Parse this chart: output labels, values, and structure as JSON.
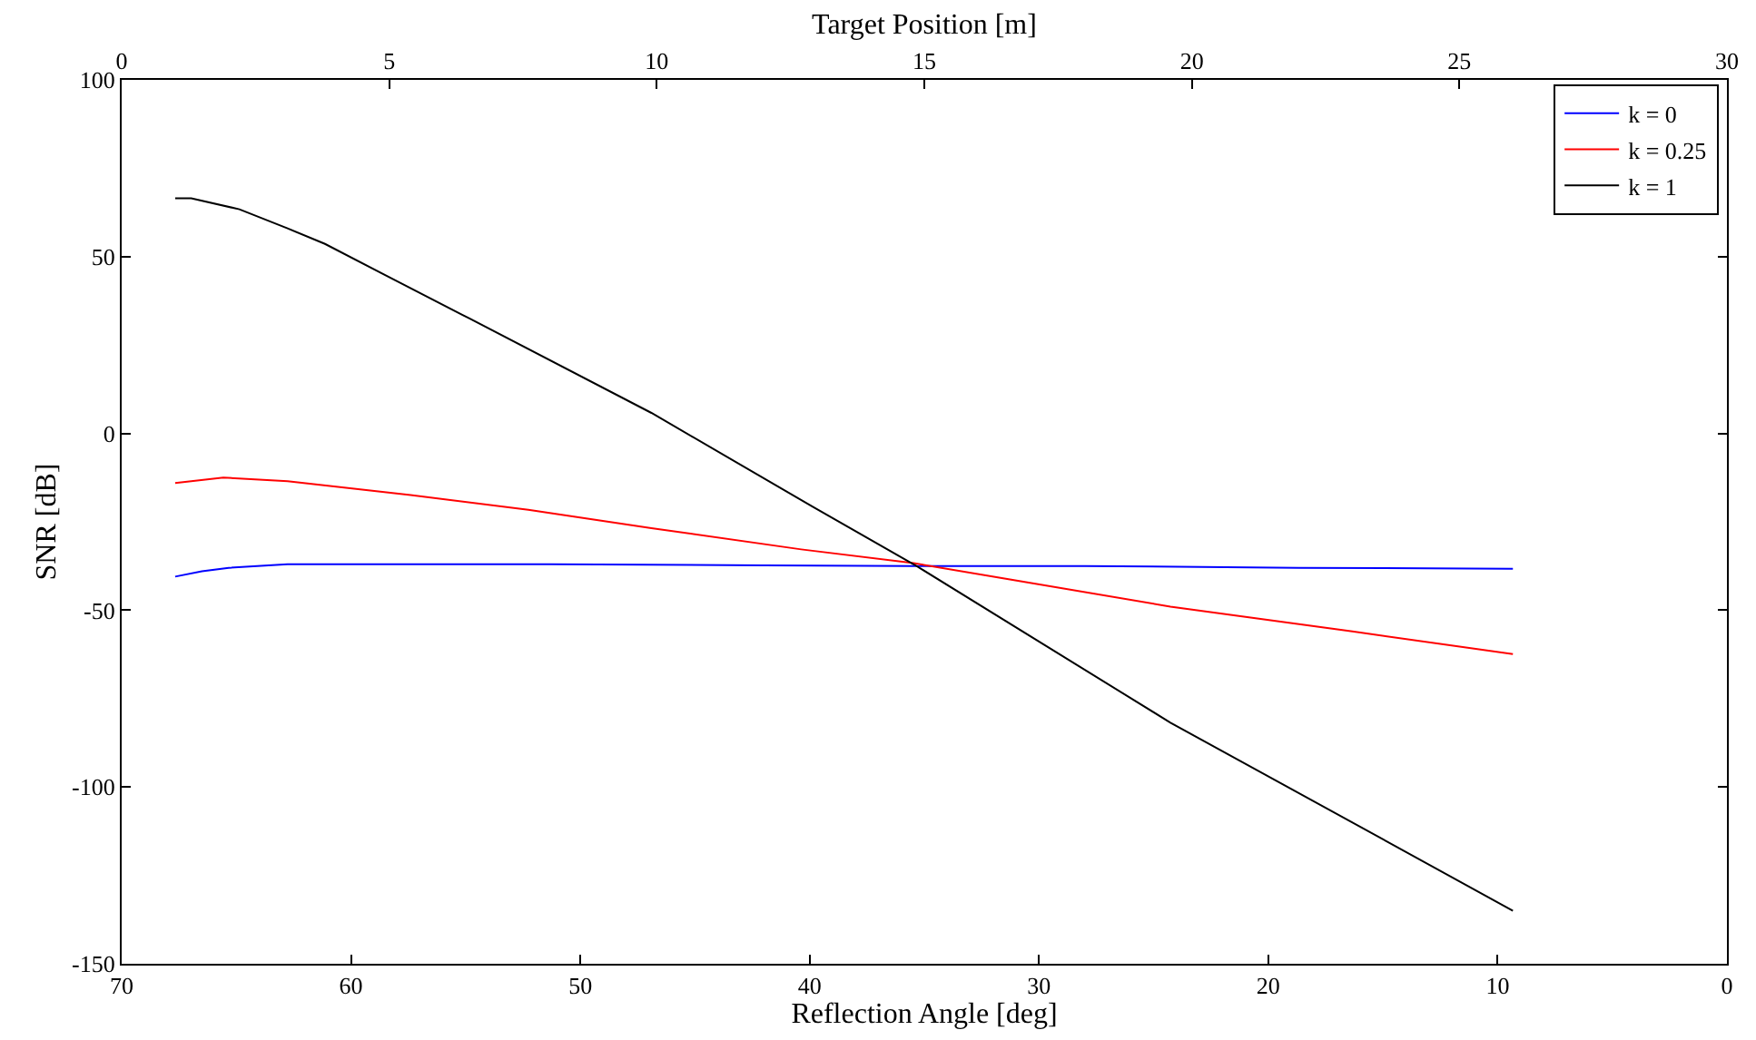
{
  "chart_data": {
    "type": "line",
    "xlabel": "Reflection Angle [deg]",
    "x2label": "Target Position [m]",
    "ylabel": "SNR [dB]",
    "xlim": [
      70,
      0
    ],
    "xticks": [
      70,
      60,
      50,
      40,
      30,
      20,
      10,
      0
    ],
    "x2lim": [
      0,
      30
    ],
    "x2ticks": [
      0,
      5,
      10,
      15,
      20,
      25,
      30
    ],
    "ylim": [
      -150,
      100
    ],
    "yticks": [
      -150,
      -100,
      -50,
      0,
      50,
      100
    ],
    "legend": "top right",
    "line_style": "solid",
    "marker": "none",
    "series": [
      {
        "name": "k = 0",
        "color": "#0000ff",
        "axis": "x2",
        "x": [
          1,
          1.5,
          2,
          3.1,
          5,
          8,
          12,
          14.8,
          18,
          22,
          26
        ],
        "values": [
          -40.5,
          -39,
          -38,
          -37,
          -37,
          -37,
          -37.3,
          -37.5,
          -37.5,
          -38,
          -38.3
        ]
      },
      {
        "name": "k = 0.25",
        "color": "#ff0000",
        "axis": "x2",
        "x": [
          1,
          1.9,
          3.1,
          5.4,
          7.6,
          9.9,
          12.7,
          14.8,
          16.6,
          19.6,
          23,
          26
        ],
        "values": [
          -14,
          -12.5,
          -13.5,
          -17.4,
          -21.6,
          -26.8,
          -32.8,
          -36.7,
          -41.3,
          -49,
          -56,
          -62.4
        ]
      },
      {
        "name": "k = 1",
        "color": "#000000",
        "axis": "x2",
        "x": [
          1,
          1.3,
          2.2,
          3.1,
          3.8,
          4.9,
          6.5,
          9.9,
          12.9,
          14.8,
          19.6,
          26
        ],
        "values": [
          66.5,
          66.5,
          63.4,
          58,
          53.6,
          45,
          32.5,
          5.8,
          -20.6,
          -37,
          -81.8,
          -135
        ]
      }
    ]
  }
}
